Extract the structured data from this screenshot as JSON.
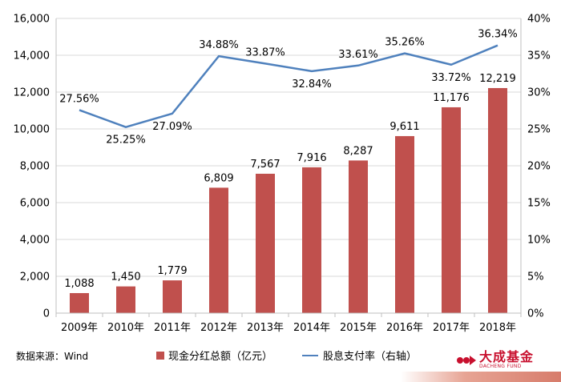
{
  "chart_data": {
    "type": "bar",
    "categories": [
      "2009年",
      "2010年",
      "2011年",
      "2012年",
      "2013年",
      "2014年",
      "2015年",
      "2016年",
      "2017年",
      "2018年"
    ],
    "series": [
      {
        "name": "现金分红总额（亿元）",
        "type": "bar",
        "axis": "left",
        "values": [
          1088,
          1450,
          1779,
          6809,
          7567,
          7916,
          8287,
          9611,
          11176,
          12219
        ],
        "labels": [
          "1,088",
          "1,450",
          "1,779",
          "6,809",
          "7,567",
          "7,916",
          "8,287",
          "9,611",
          "11,176",
          "12,219"
        ]
      },
      {
        "name": "股息支付率（右轴）",
        "type": "line",
        "axis": "right",
        "values": [
          27.56,
          25.25,
          27.09,
          34.88,
          33.87,
          32.84,
          33.61,
          35.26,
          33.72,
          36.34
        ],
        "labels": [
          "27.56%",
          "25.25%",
          "27.09%",
          "34.88%",
          "33.87%",
          "32.84%",
          "33.61%",
          "35.26%",
          "33.72%",
          "36.34%"
        ]
      }
    ],
    "y_left": {
      "min": 0,
      "max": 16000,
      "ticks": [
        0,
        2000,
        4000,
        6000,
        8000,
        10000,
        12000,
        14000,
        16000
      ],
      "tick_labels": [
        "0",
        "2,000",
        "4,000",
        "6,000",
        "8,000",
        "10,000",
        "12,000",
        "14,000",
        "16,000"
      ]
    },
    "y_right": {
      "min": 0,
      "max": 40,
      "ticks": [
        0,
        5,
        10,
        15,
        20,
        25,
        30,
        35,
        40
      ],
      "tick_labels": [
        "0%",
        "5%",
        "10%",
        "15%",
        "20%",
        "25%",
        "30%",
        "35%",
        "40%"
      ]
    },
    "colors": {
      "bar": "#C0504D",
      "line": "#4F81BD",
      "grid": "#D9D9D9"
    },
    "grid": true,
    "legend_position": "bottom"
  },
  "source_text": "数据来源：Wind",
  "legend": {
    "bar_label": "现金分红总额（亿元）",
    "line_label": "股息支付率（右轴）"
  },
  "brand": {
    "name_cn": "大成基金",
    "name_en": "DACHENG FUND",
    "color": "#C8102E"
  }
}
